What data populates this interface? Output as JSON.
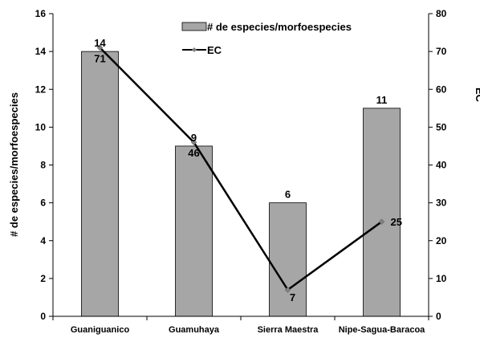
{
  "chart_data": {
    "type": "bar",
    "categories": [
      "Guaniguanico",
      "Guamuhaya",
      "Sierra Maestra",
      "Nipe-Sagua-Baracoa"
    ],
    "series": [
      {
        "name": "# de especies/morfoespecies",
        "type": "bar",
        "axis": "left",
        "values": [
          14,
          9,
          6,
          11
        ],
        "color": "#a6a6a6",
        "labels": [
          "14",
          "9",
          "6",
          "11"
        ]
      },
      {
        "name": "EC",
        "type": "line",
        "axis": "right",
        "values": [
          71,
          46,
          7,
          25
        ],
        "color": "#000000",
        "marker_color": "#808080",
        "labels": [
          "71",
          "46",
          "7",
          "25"
        ]
      }
    ],
    "ylabel": "# de especies/morfoespecies",
    "ylim": [
      0,
      16
    ],
    "yticks": [
      "0",
      "2",
      "4",
      "6",
      "8",
      "10",
      "12",
      "14",
      "16"
    ],
    "y2label": "EC",
    "y2lim": [
      0,
      80
    ],
    "y2ticks": [
      "0",
      "10",
      "20",
      "30",
      "40",
      "50",
      "60",
      "70",
      "80"
    ],
    "grid": false,
    "legend_position": "top-center"
  }
}
